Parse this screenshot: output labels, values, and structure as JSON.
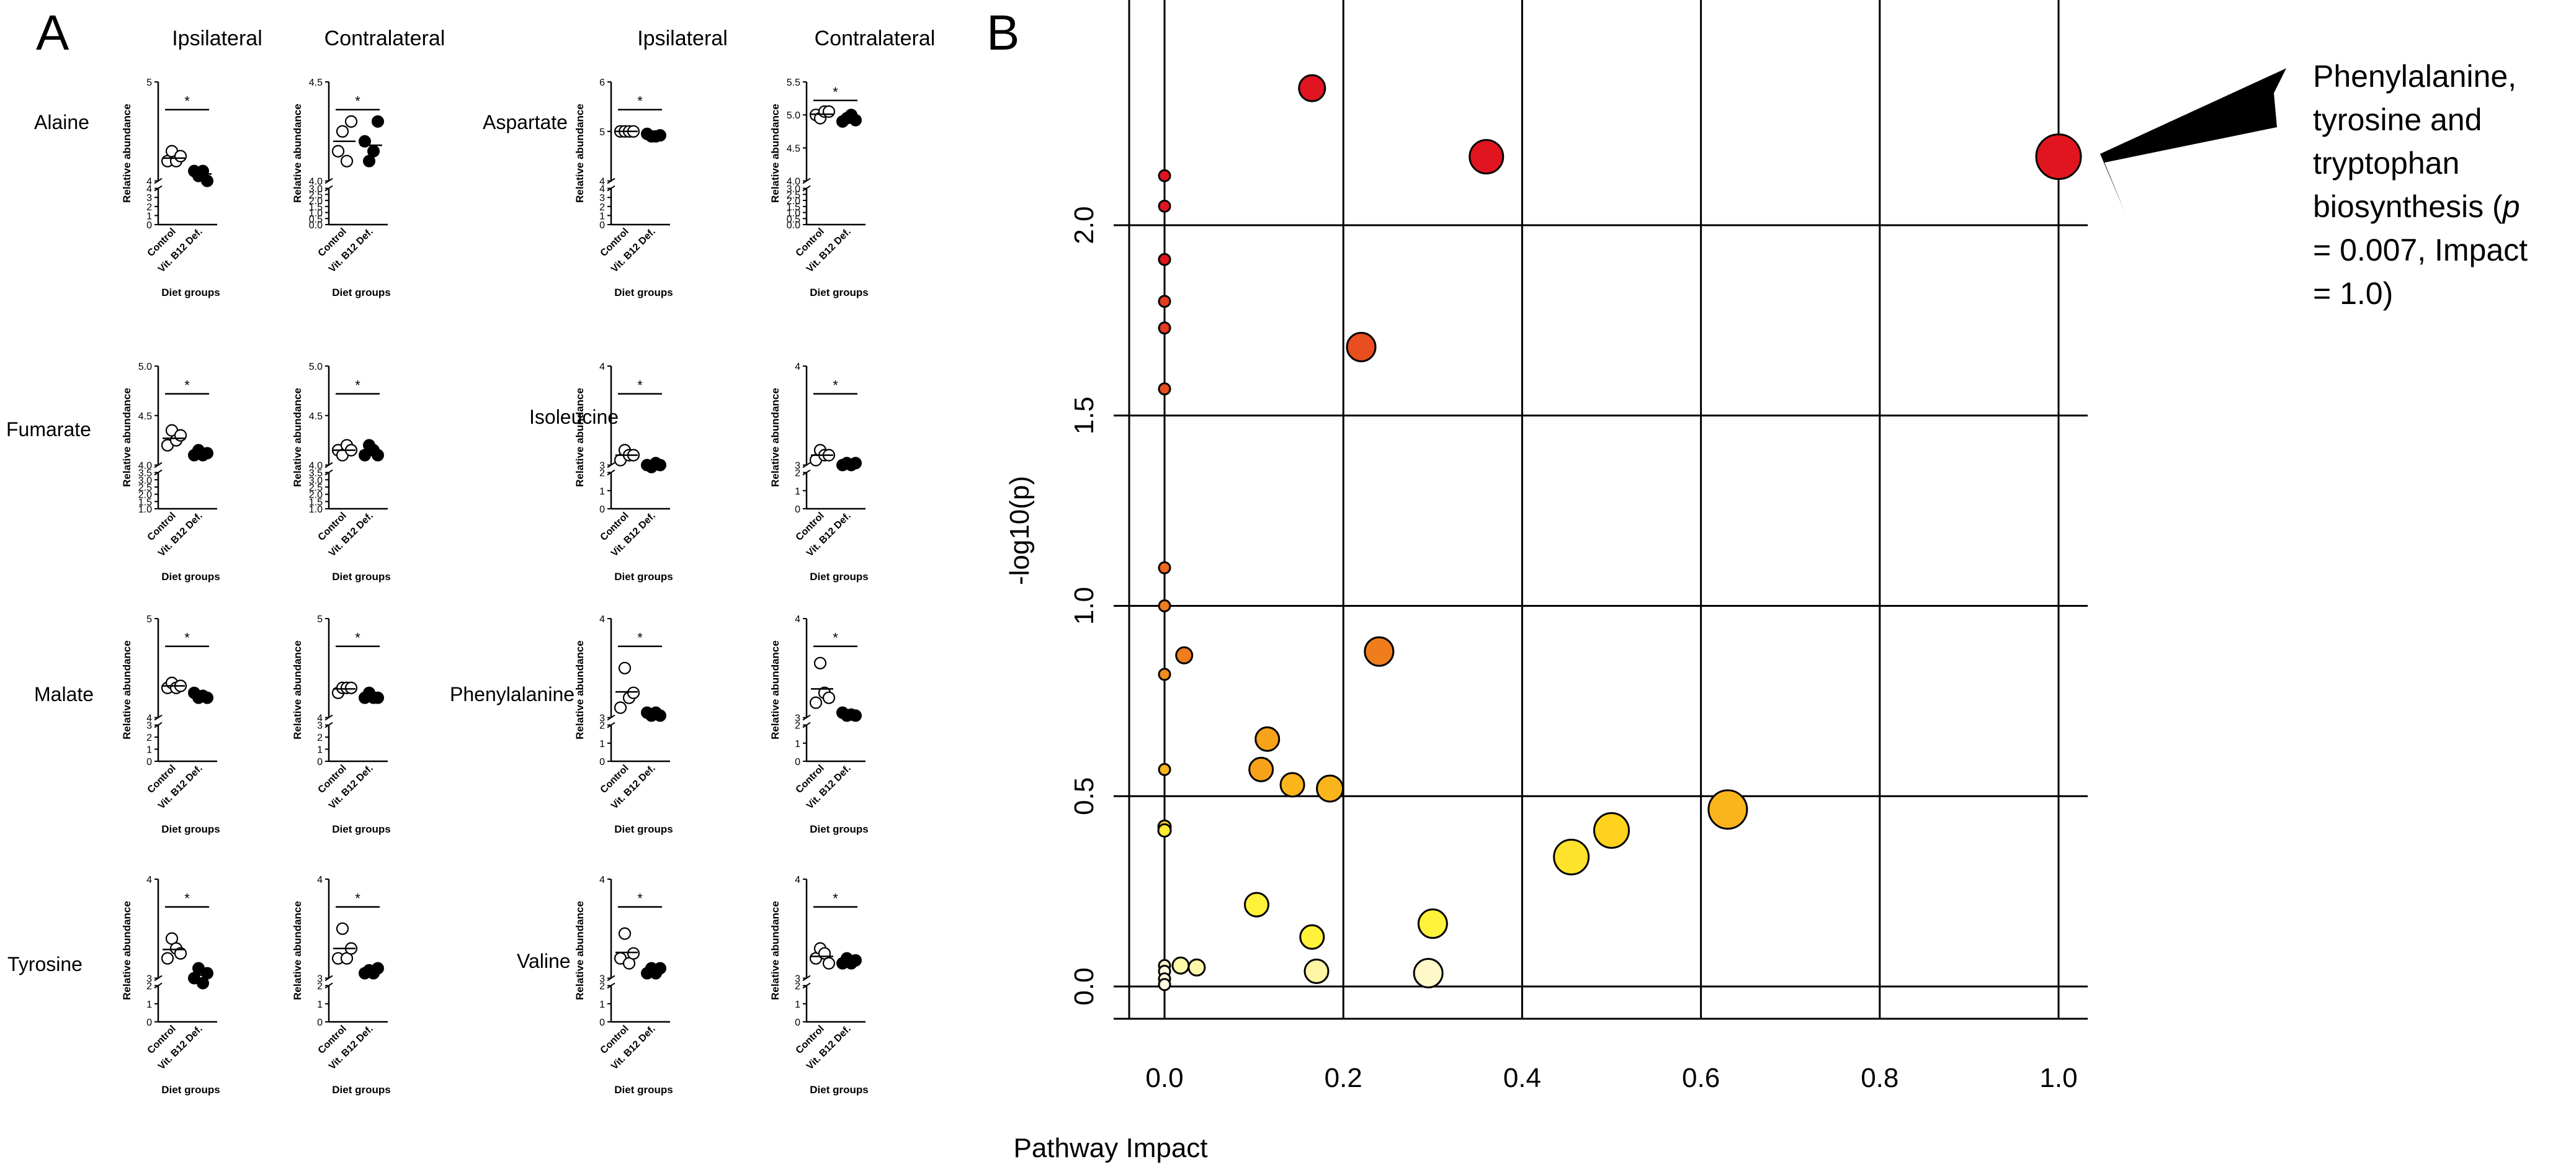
{
  "panel_a": {
    "label": "A",
    "col_headers": [
      "Ipsilateral",
      "Contralateral"
    ],
    "x_categories": [
      "Control",
      "Vit. B12 Def."
    ],
    "y_label": "Relative abundance",
    "x_title": "Diet groups",
    "sig_marker": "*",
    "control_color": "#ffffff",
    "deficient_color": "#000000"
  },
  "panel_b": {
    "label": "B",
    "annotation_lines": [
      "Phenylalanine,",
      "tyrosine and",
      "tryptophan",
      "biosynthesis (",
      "p",
      "= 0.007, Impact",
      "= 1.0)"
    ]
  },
  "chart_data": [
    {
      "type": "scatter",
      "panel": "A",
      "charts": [
        {
          "metabolite": "Alaine",
          "tissue": "Ipsilateral",
          "lower_ticks": [
            0,
            1,
            2,
            3,
            4
          ],
          "upper_ticks": [
            4,
            5
          ],
          "control": [
            4.2,
            4.3,
            4.2,
            4.25
          ],
          "deficient": [
            4.1,
            4.05,
            4.1,
            4.0
          ],
          "control_mean": 4.23,
          "deficient_mean": 4.07,
          "significant": true
        },
        {
          "metabolite": "Alaine",
          "tissue": "Contralateral",
          "lower_ticks": [
            0.0,
            0.5,
            1.0,
            1.5,
            2.0,
            2.5,
            3.0
          ],
          "upper_ticks": [
            4.0,
            4.5
          ],
          "control": [
            4.15,
            4.25,
            4.1,
            4.3
          ],
          "deficient": [
            4.2,
            4.1,
            4.15,
            4.3
          ],
          "control_mean": 4.2,
          "deficient_mean": 4.18,
          "significant": true
        },
        {
          "metabolite": "Aspartate",
          "tissue": "Ipsilateral",
          "lower_ticks": [
            0,
            1,
            2,
            3,
            4
          ],
          "upper_ticks": [
            4,
            5,
            6
          ],
          "control": [
            5.0,
            5.0,
            5.0,
            5.0
          ],
          "deficient": [
            4.95,
            4.9,
            4.9,
            4.92
          ],
          "control_mean": 5.0,
          "deficient_mean": 4.92,
          "significant": true
        },
        {
          "metabolite": "Aspartate",
          "tissue": "Contralateral",
          "lower_ticks": [
            0.0,
            0.5,
            1.0,
            1.5,
            2.0,
            2.5,
            3.0
          ],
          "upper_ticks": [
            4.0,
            4.5,
            5.0,
            5.5
          ],
          "control": [
            5.0,
            4.95,
            5.05,
            5.05
          ],
          "deficient": [
            4.9,
            4.95,
            5.0,
            4.92
          ],
          "control_mean": 5.01,
          "deficient_mean": 4.94,
          "significant": true
        },
        {
          "metabolite": "Fumarate",
          "tissue": "Ipsilateral",
          "lower_ticks": [
            1.0,
            1.5,
            2.0,
            2.5,
            3.0,
            3.5
          ],
          "upper_ticks": [
            4.0,
            4.5,
            5.0
          ],
          "control": [
            4.2,
            4.35,
            4.25,
            4.3
          ],
          "deficient": [
            4.1,
            4.15,
            4.1,
            4.12
          ],
          "control_mean": 4.27,
          "deficient_mean": 4.12,
          "significant": true
        },
        {
          "metabolite": "Fumarate",
          "tissue": "Contralateral",
          "lower_ticks": [
            1.0,
            1.5,
            2.0,
            2.5,
            3.0,
            3.5
          ],
          "upper_ticks": [
            4.0,
            4.5,
            5.0
          ],
          "control": [
            4.15,
            4.1,
            4.2,
            4.15
          ],
          "deficient": [
            4.1,
            4.2,
            4.15,
            4.1
          ],
          "control_mean": 4.15,
          "deficient_mean": 4.14,
          "significant": true
        },
        {
          "metabolite": "Isoleucine",
          "tissue": "Ipsilateral",
          "lower_ticks": [
            0,
            1,
            2
          ],
          "upper_ticks": [
            3,
            4
          ],
          "control": [
            3.05,
            3.15,
            3.1,
            3.1
          ],
          "deficient": [
            3.0,
            2.98,
            3.02,
            3.0
          ],
          "control_mean": 3.1,
          "deficient_mean": 3.0,
          "significant": true
        },
        {
          "metabolite": "Isoleucine",
          "tissue": "Contralateral",
          "lower_ticks": [
            0,
            1,
            2
          ],
          "upper_ticks": [
            3,
            4
          ],
          "control": [
            3.05,
            3.15,
            3.1,
            3.1
          ],
          "deficient": [
            3.0,
            3.02,
            3.0,
            3.02
          ],
          "control_mean": 3.1,
          "deficient_mean": 3.01,
          "significant": true
        },
        {
          "metabolite": "Malate",
          "tissue": "Ipsilateral",
          "lower_ticks": [
            0,
            1,
            2,
            3
          ],
          "upper_ticks": [
            4,
            5
          ],
          "control": [
            4.3,
            4.35,
            4.3,
            4.32
          ],
          "deficient": [
            4.25,
            4.2,
            4.22,
            4.2
          ],
          "control_mean": 4.32,
          "deficient_mean": 4.22,
          "significant": true
        },
        {
          "metabolite": "Malate",
          "tissue": "Contralateral",
          "lower_ticks": [
            0,
            1,
            2,
            3
          ],
          "upper_ticks": [
            4,
            5
          ],
          "control": [
            4.25,
            4.3,
            4.3,
            4.3
          ],
          "deficient": [
            4.2,
            4.25,
            4.2,
            4.2
          ],
          "control_mean": 4.29,
          "deficient_mean": 4.21,
          "significant": true
        },
        {
          "metabolite": "Phenylalanine",
          "tissue": "Ipsilateral",
          "lower_ticks": [
            0,
            1,
            2
          ],
          "upper_ticks": [
            3,
            4
          ],
          "control": [
            3.1,
            3.5,
            3.2,
            3.25
          ],
          "deficient": [
            3.05,
            3.02,
            3.05,
            3.02
          ],
          "control_mean": 3.26,
          "deficient_mean": 3.04,
          "significant": true
        },
        {
          "metabolite": "Phenylalanine",
          "tissue": "Contralateral",
          "lower_ticks": [
            0,
            1,
            2
          ],
          "upper_ticks": [
            3,
            4
          ],
          "control": [
            3.15,
            3.55,
            3.25,
            3.2
          ],
          "deficient": [
            3.05,
            3.02,
            3.03,
            3.02
          ],
          "control_mean": 3.29,
          "deficient_mean": 3.03,
          "significant": true
        },
        {
          "metabolite": "Tyrosine",
          "tissue": "Ipsilateral",
          "lower_ticks": [
            0,
            1,
            2
          ],
          "upper_ticks": [
            3,
            4
          ],
          "control": [
            3.2,
            3.4,
            3.3,
            3.25
          ],
          "deficient": [
            3.0,
            3.1,
            2.95,
            3.05
          ],
          "control_mean": 3.29,
          "deficient_mean": 3.03,
          "significant": true
        },
        {
          "metabolite": "Tyrosine",
          "tissue": "Contralateral",
          "lower_ticks": [
            0,
            1,
            2
          ],
          "upper_ticks": [
            3,
            4
          ],
          "control": [
            3.2,
            3.5,
            3.2,
            3.3
          ],
          "deficient": [
            3.05,
            3.08,
            3.05,
            3.1
          ],
          "control_mean": 3.3,
          "deficient_mean": 3.07,
          "significant": true
        },
        {
          "metabolite": "Valine",
          "tissue": "Ipsilateral",
          "lower_ticks": [
            0,
            1,
            2
          ],
          "upper_ticks": [
            3,
            4
          ],
          "control": [
            3.2,
            3.45,
            3.15,
            3.25
          ],
          "deficient": [
            3.05,
            3.1,
            3.05,
            3.1
          ],
          "control_mean": 3.26,
          "deficient_mean": 3.08,
          "significant": true
        },
        {
          "metabolite": "Valine",
          "tissue": "Contralateral",
          "lower_ticks": [
            0,
            1,
            2
          ],
          "upper_ticks": [
            3,
            4
          ],
          "control": [
            3.2,
            3.3,
            3.25,
            3.15
          ],
          "deficient": [
            3.15,
            3.2,
            3.15,
            3.18
          ],
          "control_mean": 3.22,
          "deficient_mean": 3.17,
          "significant": true
        }
      ]
    },
    {
      "type": "scatter",
      "panel": "B",
      "xlabel": "Pathway Impact",
      "ylabel": "-log10(p)",
      "xlim": [
        -0.03,
        1.02
      ],
      "ylim": [
        -0.08,
        2.55
      ],
      "x_ticks": [
        0.0,
        0.2,
        0.4,
        0.6,
        0.8,
        1.0
      ],
      "y_ticks": [
        0.0,
        0.5,
        1.0,
        1.5,
        2.0
      ],
      "grid_x": [
        0.0,
        0.2,
        0.4,
        0.6,
        0.8,
        1.0
      ],
      "grid_y": [
        0.0,
        0.5,
        1.0,
        1.5,
        2.0
      ],
      "color_scale": [
        "#fffdd8",
        "#fff23a",
        "#ffd21e",
        "#f7a21b",
        "#ef6a1d",
        "#e43a20",
        "#e0151f"
      ],
      "points": [
        {
          "x": 1.0,
          "y": 2.18,
          "r": 36,
          "c": "#e0151f"
        },
        {
          "x": 0.165,
          "y": 2.36,
          "r": 21,
          "c": "#e0151f"
        },
        {
          "x": 0.36,
          "y": 2.18,
          "r": 27,
          "c": "#e0151f"
        },
        {
          "x": 0.22,
          "y": 1.68,
          "r": 23,
          "c": "#e84e1e"
        },
        {
          "x": 0.24,
          "y": 0.88,
          "r": 23,
          "c": "#f07d1c"
        },
        {
          "x": 0.022,
          "y": 0.87,
          "r": 13,
          "c": "#f07d1c"
        },
        {
          "x": 0.115,
          "y": 0.65,
          "r": 19,
          "c": "#f7a21b"
        },
        {
          "x": 0.108,
          "y": 0.57,
          "r": 19,
          "c": "#f7a21b"
        },
        {
          "x": 0.143,
          "y": 0.53,
          "r": 19,
          "c": "#fbb51c"
        },
        {
          "x": 0.185,
          "y": 0.52,
          "r": 21,
          "c": "#fbb51c"
        },
        {
          "x": 0.63,
          "y": 0.465,
          "r": 31,
          "c": "#fbb51c"
        },
        {
          "x": 0.5,
          "y": 0.41,
          "r": 28,
          "c": "#ffd21e"
        },
        {
          "x": 0.455,
          "y": 0.34,
          "r": 28,
          "c": "#ffe22c"
        },
        {
          "x": 0.103,
          "y": 0.215,
          "r": 19,
          "c": "#fff23a"
        },
        {
          "x": 0.3,
          "y": 0.165,
          "r": 23,
          "c": "#fff23a"
        },
        {
          "x": 0.165,
          "y": 0.13,
          "r": 19,
          "c": "#fff23a"
        },
        {
          "x": 0.17,
          "y": 0.04,
          "r": 19,
          "c": "#fff5a4"
        },
        {
          "x": 0.295,
          "y": 0.035,
          "r": 23,
          "c": "#fff8c8"
        },
        {
          "x": 0.018,
          "y": 0.055,
          "r": 13,
          "c": "#fff8a8"
        },
        {
          "x": 0.036,
          "y": 0.05,
          "r": 13,
          "c": "#fff8a8"
        },
        {
          "x": 0.0,
          "y": 2.13,
          "r": 9,
          "c": "#e0151f"
        },
        {
          "x": 0.0,
          "y": 2.05,
          "r": 9,
          "c": "#e0151f"
        },
        {
          "x": 0.0,
          "y": 1.91,
          "r": 9,
          "c": "#e0151f"
        },
        {
          "x": 0.0,
          "y": 1.8,
          "r": 9,
          "c": "#e43a20"
        },
        {
          "x": 0.0,
          "y": 1.73,
          "r": 9,
          "c": "#e43a20"
        },
        {
          "x": 0.0,
          "y": 1.57,
          "r": 9,
          "c": "#e84e1e"
        },
        {
          "x": 0.0,
          "y": 1.1,
          "r": 9,
          "c": "#ec6a1d"
        },
        {
          "x": 0.0,
          "y": 1.0,
          "r": 9,
          "c": "#ef7d1c"
        },
        {
          "x": 0.0,
          "y": 0.82,
          "r": 9,
          "c": "#f28d1c"
        },
        {
          "x": 0.0,
          "y": 0.57,
          "r": 9,
          "c": "#fbb51c"
        },
        {
          "x": 0.0,
          "y": 0.42,
          "r": 10,
          "c": "#ffd21e"
        },
        {
          "x": 0.0,
          "y": 0.41,
          "r": 10,
          "c": "#ffea34"
        },
        {
          "x": 0.0,
          "y": 0.055,
          "r": 9,
          "c": "#fff8c8"
        },
        {
          "x": 0.0,
          "y": 0.04,
          "r": 9,
          "c": "#fffbe0"
        },
        {
          "x": 0.0,
          "y": 0.02,
          "r": 9,
          "c": "#fffbe0"
        },
        {
          "x": 0.0,
          "y": 0.005,
          "r": 9,
          "c": "#fffbe0"
        }
      ]
    }
  ]
}
